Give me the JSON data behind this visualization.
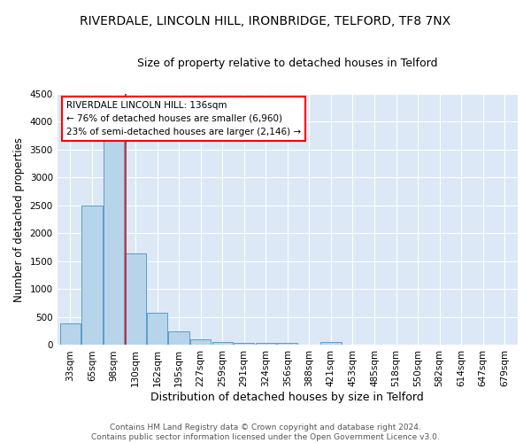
{
  "title1": "RIVERDALE, LINCOLN HILL, IRONBRIDGE, TELFORD, TF8 7NX",
  "title2": "Size of property relative to detached houses in Telford",
  "xlabel": "Distribution of detached houses by size in Telford",
  "ylabel": "Number of detached properties",
  "categories": [
    "33sqm",
    "65sqm",
    "98sqm",
    "130sqm",
    "162sqm",
    "195sqm",
    "227sqm",
    "259sqm",
    "291sqm",
    "324sqm",
    "356sqm",
    "388sqm",
    "421sqm",
    "453sqm",
    "485sqm",
    "518sqm",
    "550sqm",
    "582sqm",
    "614sqm",
    "647sqm",
    "679sqm"
  ],
  "values": [
    380,
    2500,
    3700,
    1640,
    580,
    240,
    105,
    60,
    40,
    35,
    40,
    0,
    55,
    0,
    0,
    0,
    0,
    0,
    0,
    0,
    0
  ],
  "bar_color": "#b8d4ea",
  "bar_edge_color": "#5a9ec8",
  "bg_color": "#dce8f5",
  "grid_color": "#ffffff",
  "red_line_x": 3,
  "annotation_line1": "RIVERDALE LINCOLN HILL: 136sqm",
  "annotation_line2": "← 76% of detached houses are smaller (6,960)",
  "annotation_line3": "23% of semi-detached houses are larger (2,146) →",
  "ylim": [
    0,
    4500
  ],
  "yticks": [
    0,
    500,
    1000,
    1500,
    2000,
    2500,
    3000,
    3500,
    4000,
    4500
  ],
  "footer": "Contains HM Land Registry data © Crown copyright and database right 2024.\nContains public sector information licensed under the Open Government Licence v3.0.",
  "title1_fontsize": 10,
  "title2_fontsize": 9,
  "xlabel_fontsize": 9,
  "ylabel_fontsize": 8.5,
  "tick_fontsize": 7.5,
  "annotation_fontsize": 7.5,
  "footer_fontsize": 6.5
}
